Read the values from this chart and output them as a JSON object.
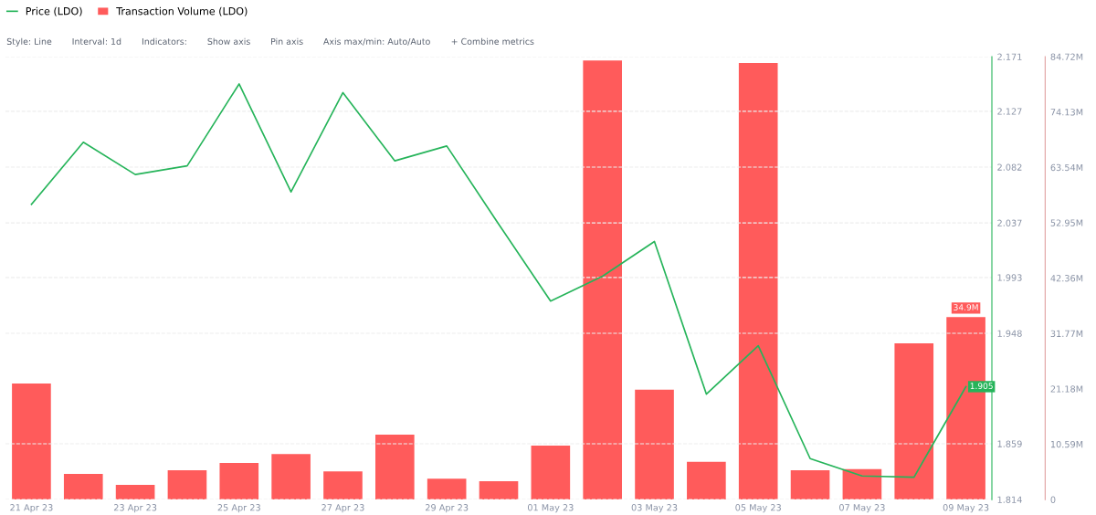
{
  "chart_data": {
    "type": "bar",
    "categories": [
      "21 Apr 23",
      null,
      "23 Apr 23",
      null,
      "25 Apr 23",
      null,
      "27 Apr 23",
      null,
      "29 Apr 23",
      null,
      "01 May 23",
      null,
      "03 May 23",
      null,
      "05 May 23",
      null,
      "07 May 23",
      null,
      "09 May 23"
    ],
    "series": [
      {
        "name": "Transaction Volume (LDO)",
        "axis": "y2",
        "color": "#ff5b5b",
        "values": [
          22.2,
          4.9,
          2.8,
          5.6,
          7.0,
          8.7,
          5.4,
          12.4,
          4.0,
          3.5,
          10.3,
          84.0,
          21.0,
          7.2,
          83.5,
          5.6,
          5.8,
          29.9,
          34.9
        ],
        "value_labels": [
          null,
          null,
          null,
          null,
          null,
          null,
          null,
          null,
          null,
          null,
          null,
          null,
          null,
          null,
          null,
          null,
          null,
          null,
          "34.9M"
        ]
      },
      {
        "name": "Price (LDO)",
        "type": "line",
        "color": "#26b45a",
        "values": [
          2.052,
          2.102,
          2.076,
          2.083,
          2.149,
          2.062,
          2.142,
          2.087,
          2.099,
          2.036,
          1.974,
          1.994,
          2.022,
          1.899,
          1.938,
          1.847,
          1.833,
          1.832,
          1.905
        ],
        "value_labels": [
          null,
          null,
          null,
          null,
          null,
          null,
          null,
          null,
          null,
          null,
          null,
          null,
          null,
          null,
          null,
          null,
          null,
          null,
          "1.905"
        ]
      }
    ],
    "ylim": [
      1.814,
      2.171
    ],
    "yticks": [
      1.814,
      1.859,
      1.948,
      1.993,
      2.037,
      2.082,
      2.127,
      2.171
    ],
    "y2lim": [
      0,
      84.72
    ],
    "y2ticks": [
      0,
      {
        "value": 10.59,
        "label": "10.59M"
      },
      {
        "value": 21.18,
        "label": "21.18M"
      },
      {
        "value": 31.77,
        "label": "31.77M"
      },
      {
        "value": 42.36,
        "label": "42.36M"
      },
      {
        "value": 52.95,
        "label": "52.95M"
      },
      {
        "value": 63.54,
        "label": "63.54M"
      },
      {
        "value": 74.13,
        "label": "74.13M"
      },
      {
        "value": 84.72,
        "label": "84.72M"
      }
    ],
    "grid": "y",
    "legend": "top left",
    "marker": "none",
    "line_style": "solid",
    "annotations": [
      "Style: Line",
      "Interval: 1d",
      "Indicators:",
      "Show axis",
      "Pin axis",
      "Axis max/min: Auto/Auto",
      "+ Combine metrics"
    ]
  }
}
